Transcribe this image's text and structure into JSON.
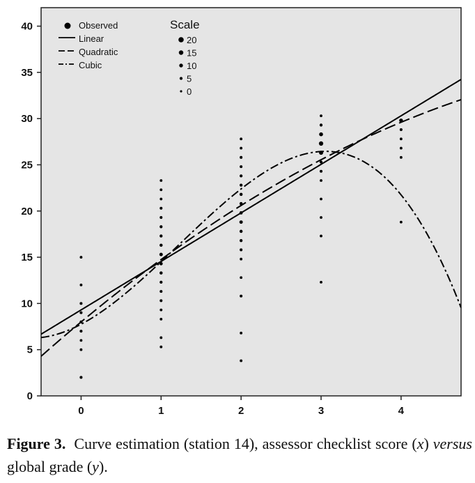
{
  "chart_data": {
    "type": "scatter",
    "xlim": [
      -0.5,
      4.75
    ],
    "ylim": [
      0,
      42
    ],
    "xticks": [
      0,
      1,
      2,
      3,
      4
    ],
    "yticks": [
      0,
      5,
      10,
      15,
      20,
      25,
      30,
      35,
      40
    ],
    "grid": false,
    "legend": {
      "placement": "top-left",
      "entries": [
        {
          "label": "Observed",
          "style": "marker"
        },
        {
          "label": "Linear",
          "style": "solid"
        },
        {
          "label": "Quadratic",
          "style": "long-dash"
        },
        {
          "label": "Cubic",
          "style": "dash-dot"
        }
      ]
    },
    "scale_legend": {
      "title": "Scale",
      "entries": [
        {
          "label": "20",
          "value": 20
        },
        {
          "label": "15",
          "value": 15
        },
        {
          "label": "10",
          "value": 10
        },
        {
          "label": "5",
          "value": 5
        },
        {
          "label": "0",
          "value": 0
        }
      ]
    },
    "observed": [
      {
        "x": 0,
        "points": [
          [
            2,
            4
          ],
          [
            5,
            3
          ],
          [
            6,
            3
          ],
          [
            7,
            4
          ],
          [
            8,
            5
          ],
          [
            9,
            4
          ],
          [
            10,
            4
          ],
          [
            12,
            3
          ],
          [
            15,
            3
          ]
        ]
      },
      {
        "x": 1,
        "points": [
          [
            5.3,
            3
          ],
          [
            6.3,
            3
          ],
          [
            8.3,
            3
          ],
          [
            9.3,
            3
          ],
          [
            10.3,
            4
          ],
          [
            11.3,
            4
          ],
          [
            12.3,
            5
          ],
          [
            13.3,
            6
          ],
          [
            14.3,
            7
          ],
          [
            15.3,
            8
          ],
          [
            16.3,
            6
          ],
          [
            17.3,
            5
          ],
          [
            18.3,
            5
          ],
          [
            19.3,
            4
          ],
          [
            20.3,
            4
          ],
          [
            21.3,
            3
          ],
          [
            22.3,
            3
          ],
          [
            23.3,
            3
          ]
        ]
      },
      {
        "x": 2,
        "points": [
          [
            3.8,
            3
          ],
          [
            6.8,
            3
          ],
          [
            10.8,
            4
          ],
          [
            12.8,
            3
          ],
          [
            14.8,
            3
          ],
          [
            15.8,
            4
          ],
          [
            16.8,
            5
          ],
          [
            17.8,
            6
          ],
          [
            18.8,
            8
          ],
          [
            19.8,
            7
          ],
          [
            20.8,
            6
          ],
          [
            21.8,
            6
          ],
          [
            22.8,
            5
          ],
          [
            23.8,
            5
          ],
          [
            24.8,
            4
          ],
          [
            25.8,
            4
          ],
          [
            26.8,
            3
          ],
          [
            27.8,
            3
          ]
        ]
      },
      {
        "x": 3,
        "points": [
          [
            12.3,
            3
          ],
          [
            17.3,
            3
          ],
          [
            19.3,
            3
          ],
          [
            21.3,
            3
          ],
          [
            23.3,
            3
          ],
          [
            24.3,
            4
          ],
          [
            25.3,
            5
          ],
          [
            26.3,
            12
          ],
          [
            27.3,
            14
          ],
          [
            28.3,
            11
          ],
          [
            29.3,
            5
          ],
          [
            30.3,
            3
          ]
        ]
      },
      {
        "x": 4,
        "points": [
          [
            18.8,
            3
          ],
          [
            25.8,
            3
          ],
          [
            26.8,
            3
          ],
          [
            27.8,
            3
          ],
          [
            28.8,
            4
          ],
          [
            29.8,
            10
          ]
        ]
      }
    ],
    "fits": {
      "linear": [
        9.3,
        5.25
      ],
      "quadratic": [
        8.0,
        7.2,
        -0.45
      ],
      "cubic": [
        7.75,
        4.58,
        3.01,
        -0.82
      ]
    }
  },
  "caption": {
    "label": "Figure 3.",
    "text_1": "Curve estimation (station 14), assessor checklist score (",
    "var_x": "x",
    "text_2": ") ",
    "versus": "versus",
    "text_3": " global grade (",
    "var_y": "y",
    "text_4": ")."
  }
}
